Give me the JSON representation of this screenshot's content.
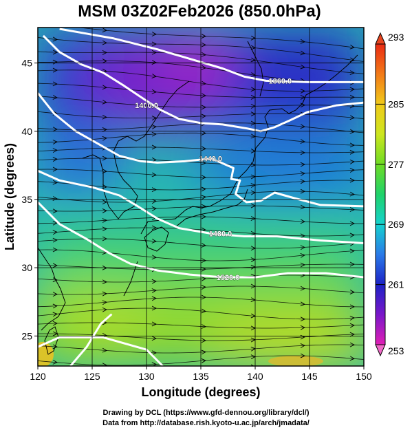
{
  "chart_data": {
    "type": "heatmap",
    "title": "MSM 03Z02Feb2026 (850.0hPa)",
    "xlabel": "Longitude (degrees)",
    "ylabel": "Latitude  (degrees)",
    "xlim": [
      120,
      150
    ],
    "ylim": [
      22.8,
      47.6
    ],
    "x_ticks": [
      120,
      125,
      130,
      135,
      140,
      145,
      150
    ],
    "y_ticks": [
      25,
      30,
      35,
      40,
      45
    ],
    "colorbar": {
      "min": 253,
      "max": 293,
      "ticks": [
        253,
        261,
        269,
        277,
        285,
        293
      ]
    },
    "contours": [
      {
        "label": "1360.0",
        "label_lon": 142.3,
        "label_lat": 43.7,
        "path": [
          [
            122,
            47.5
          ],
          [
            127,
            46.8
          ],
          [
            131,
            46.0
          ],
          [
            134,
            45.3
          ],
          [
            137,
            44.6
          ],
          [
            139,
            44.0
          ],
          [
            141,
            43.7
          ],
          [
            145,
            43.6
          ],
          [
            150,
            43.6
          ]
        ]
      },
      {
        "label": "1400.0",
        "label_lon": 130.0,
        "label_lat": 41.9,
        "path": [
          [
            120.5,
            47.0
          ],
          [
            122,
            45.8
          ],
          [
            124,
            44.9
          ],
          [
            126,
            44.3
          ],
          [
            127.8,
            43.4
          ],
          [
            129.5,
            42.5
          ],
          [
            131.2,
            41.6
          ],
          [
            133,
            40.9
          ],
          [
            135,
            40.6
          ],
          [
            137,
            40.5
          ],
          [
            139.3,
            40.2
          ],
          [
            140.5,
            40.0
          ],
          [
            141.8,
            40.3
          ],
          [
            143.2,
            40.8
          ],
          [
            144.8,
            41.4
          ],
          [
            147.5,
            41.9
          ],
          [
            150,
            42.1
          ]
        ]
      },
      {
        "label": "1440.0",
        "label_lon": 135.9,
        "label_lat": 38.0,
        "path": [
          [
            120,
            42.8
          ],
          [
            121.5,
            41.3
          ],
          [
            123.5,
            40.0
          ],
          [
            125.5,
            39.1
          ],
          [
            127.5,
            38.2
          ],
          [
            129.5,
            37.8
          ],
          [
            131,
            37.7
          ],
          [
            133.5,
            37.8
          ],
          [
            136,
            38.0
          ],
          [
            138,
            37.3
          ],
          [
            137.8,
            36.5
          ],
          [
            138.6,
            36.4
          ],
          [
            138.2,
            35.4
          ],
          [
            139.2,
            34.8
          ],
          [
            140.5,
            34.9
          ],
          [
            141.8,
            35.5
          ],
          [
            143.6,
            35.1
          ],
          [
            146,
            34.6
          ],
          [
            150,
            34.5
          ]
        ]
      },
      {
        "label": "1480.0",
        "label_lon": 136.8,
        "label_lat": 32.5,
        "path": [
          [
            120,
            37.1
          ],
          [
            122,
            36.4
          ],
          [
            125,
            35.9
          ],
          [
            127.5,
            35.3
          ],
          [
            129,
            34.6
          ],
          [
            131,
            33.6
          ],
          [
            133,
            32.9
          ],
          [
            136,
            32.5
          ],
          [
            139,
            32.3
          ],
          [
            142,
            32.3
          ],
          [
            146,
            32.0
          ],
          [
            150,
            31.8
          ]
        ]
      },
      {
        "label": "1520.0",
        "label_lon": 137.5,
        "label_lat": 29.3,
        "path": [
          [
            120,
            34.8
          ],
          [
            122,
            33.2
          ],
          [
            124.5,
            32.1
          ],
          [
            126.5,
            31.1
          ],
          [
            128.5,
            30.3
          ],
          [
            131,
            29.8
          ],
          [
            134,
            29.5
          ],
          [
            137,
            29.3
          ],
          [
            140,
            29.3
          ],
          [
            143,
            29.6
          ],
          [
            146.5,
            29.6
          ],
          [
            150,
            29.3
          ]
        ]
      },
      {
        "label": "",
        "label_lon": 0,
        "label_lat": 0,
        "path": [
          [
            123,
            22.8
          ],
          [
            124.5,
            24.2
          ],
          [
            125.8,
            25.9
          ],
          [
            126.8,
            26.6
          ]
        ]
      },
      {
        "label": "",
        "label_lon": 0,
        "label_lat": 0,
        "path": [
          [
            120,
            24.2
          ],
          [
            122,
            24.9
          ],
          [
            126,
            24.9
          ],
          [
            130,
            24.0
          ],
          [
            131.5,
            22.8
          ]
        ]
      }
    ]
  },
  "credits": {
    "line1": "Drawing by DCL (https://www.gfd-dennou.org/library/dcl/)",
    "line2": "Data from http://database.rish.kyoto-u.ac.jp/arch/jmadata/"
  }
}
